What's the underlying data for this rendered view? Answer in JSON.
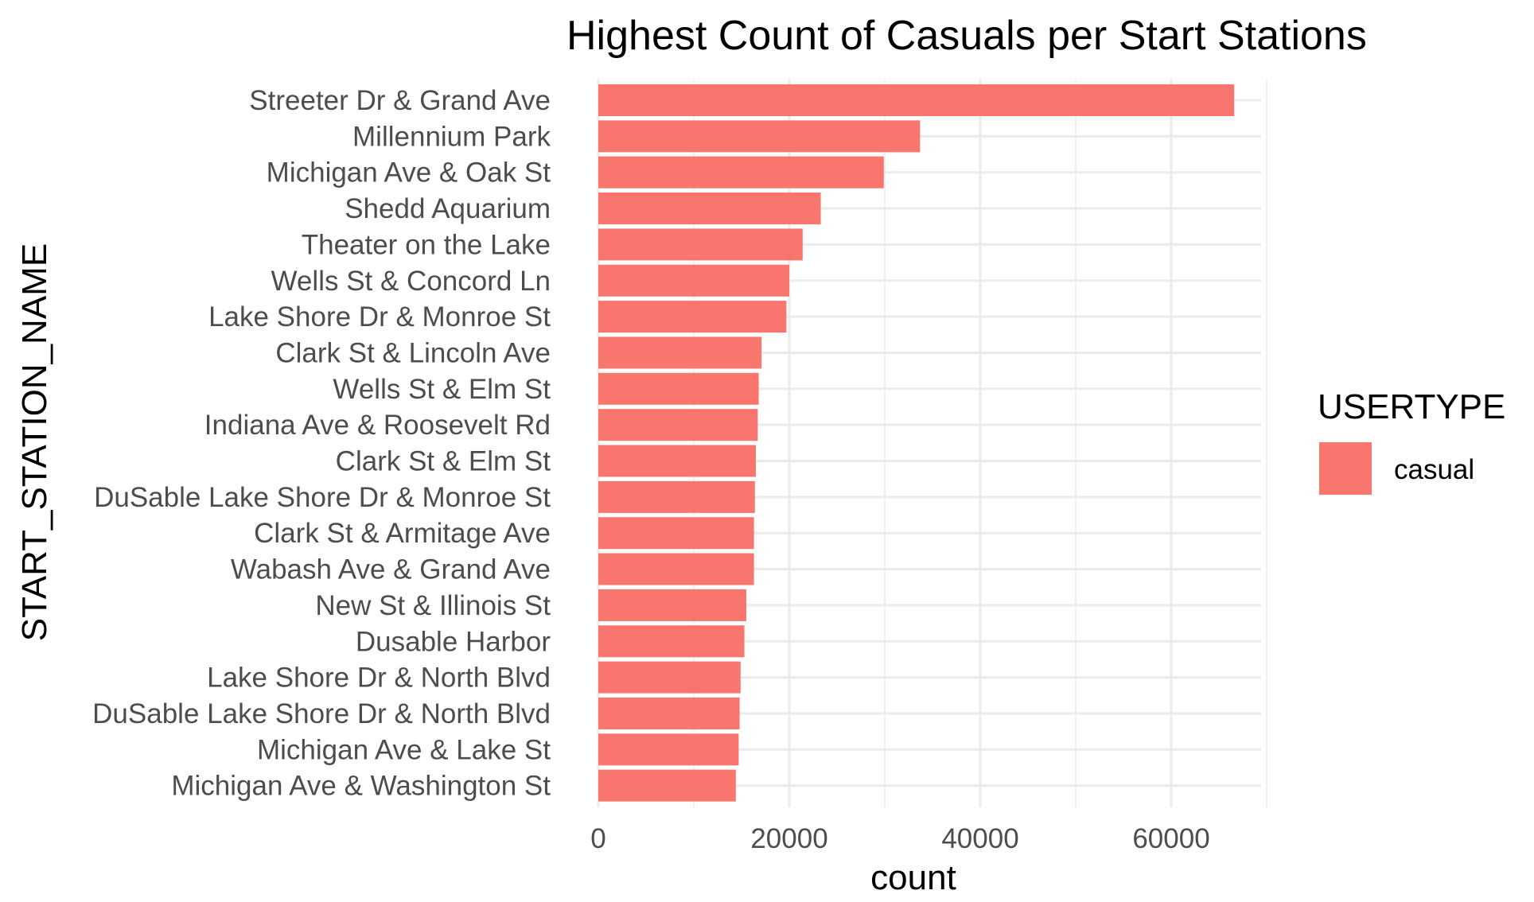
{
  "chart_data": {
    "type": "bar",
    "orientation": "horizontal",
    "title": "Highest Count of Casuals per Start Stations",
    "xlabel": "count",
    "ylabel": "START_STATION_NAME",
    "xlim": [
      0,
      70000
    ],
    "xticks": [
      0,
      20000,
      40000,
      60000
    ],
    "grid": true,
    "legend": {
      "title": "USERTYPE",
      "position": "right",
      "entries": [
        {
          "label": "casual",
          "color": "#F8766D"
        }
      ]
    },
    "categories": [
      "Streeter Dr & Grand Ave",
      "Millennium Park",
      "Michigan Ave & Oak St",
      "Shedd Aquarium",
      "Theater on the Lake",
      "Wells St & Concord Ln",
      "Lake Shore Dr & Monroe St",
      "Clark St & Lincoln Ave",
      "Wells St & Elm St",
      "Indiana Ave & Roosevelt Rd",
      "Clark St & Elm St",
      "DuSable Lake Shore Dr & Monroe St",
      "Clark St & Armitage Ave",
      "Wabash Ave & Grand Ave",
      "New St & Illinois St",
      "Dusable Harbor",
      "Lake Shore Dr & North Blvd",
      "DuSable Lake Shore Dr & North Blvd",
      "Michigan Ave & Lake St",
      "Michigan Ave & Washington St"
    ],
    "series": [
      {
        "name": "casual",
        "color": "#F8766D",
        "values": [
          66600,
          33700,
          29900,
          23300,
          21400,
          20000,
          19700,
          17100,
          16800,
          16700,
          16500,
          16400,
          16300,
          16300,
          15500,
          15300,
          14900,
          14800,
          14700,
          14400
        ]
      }
    ]
  }
}
